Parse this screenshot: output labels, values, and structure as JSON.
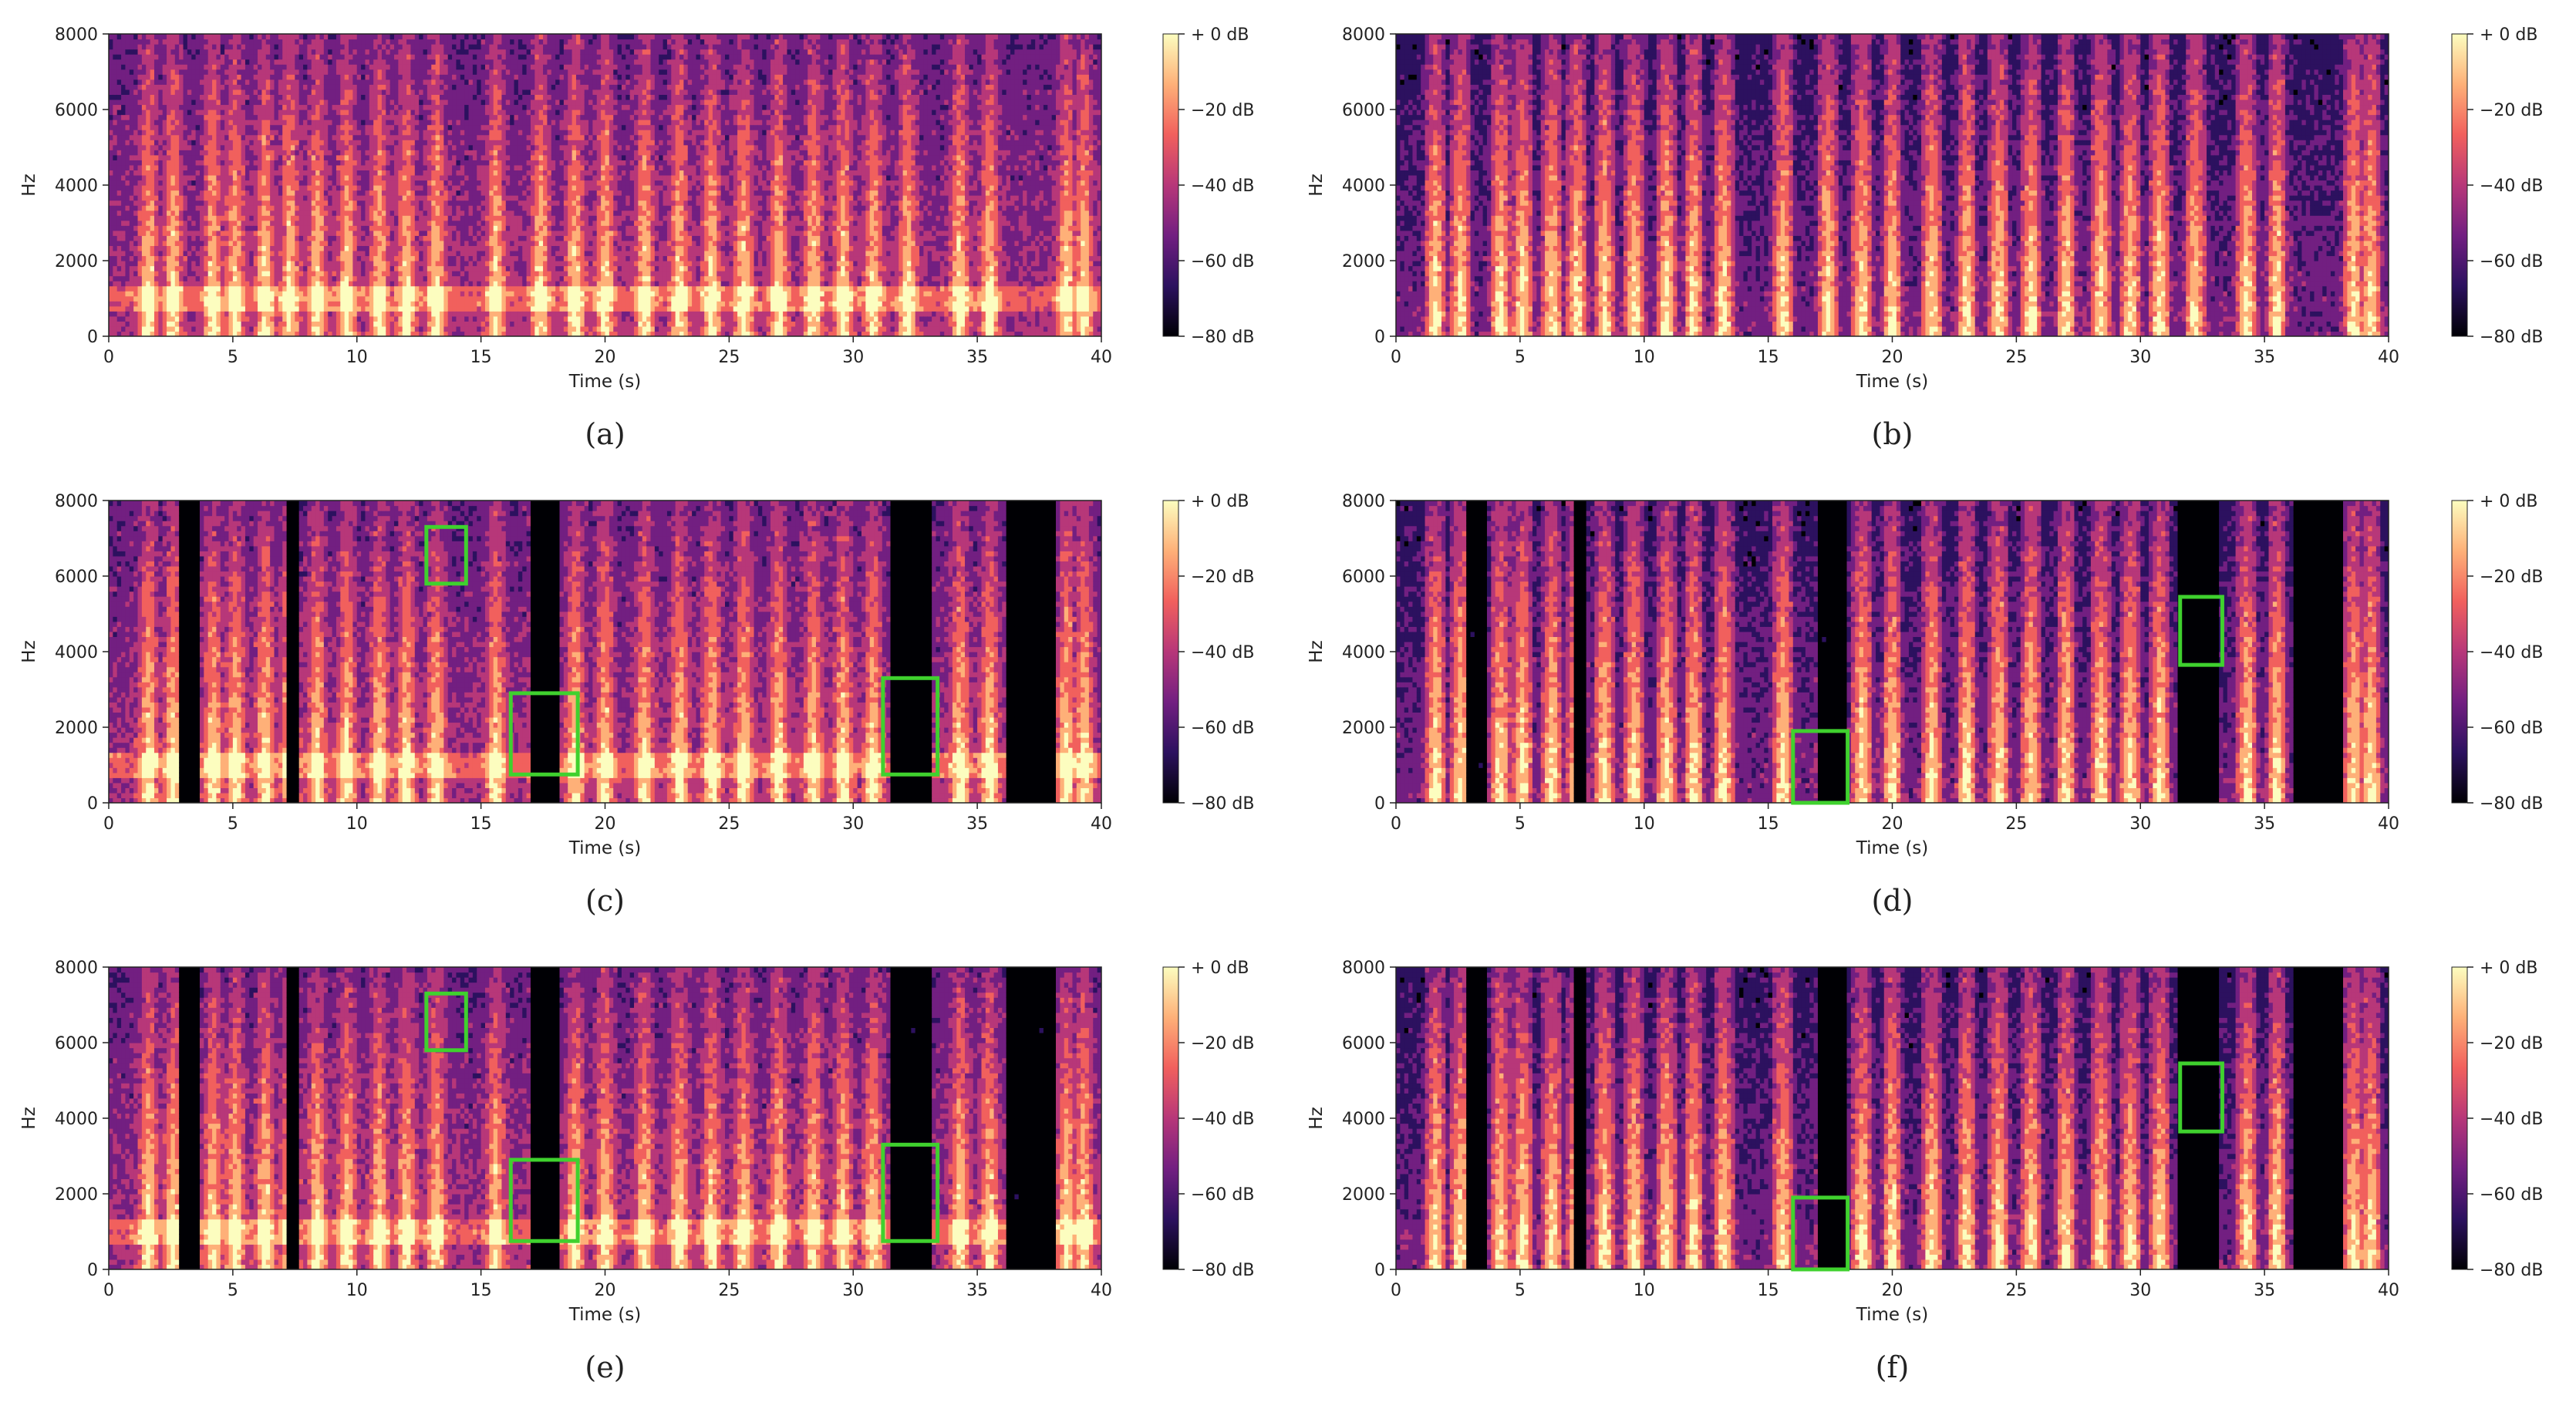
{
  "chart_data": [
    {
      "type": "heatmap",
      "panel_label": "(a)",
      "variant": "noisy",
      "xlabel": "Time (s)",
      "ylabel": "Hz",
      "xlim": [
        0,
        40
      ],
      "ylim": [
        0,
        8000
      ],
      "x_ticks": [
        "0",
        "5",
        "10",
        "15",
        "20",
        "25",
        "30",
        "35",
        "40"
      ],
      "y_ticks": [
        "0",
        "2000",
        "4000",
        "6000",
        "8000"
      ],
      "colorbar": {
        "range_db": [
          -80,
          0
        ],
        "tick_labels": [
          "+ 0 dB",
          "−20 dB",
          "−40 dB",
          "−60 dB",
          "−80 dB"
        ]
      },
      "annotations": []
    },
    {
      "type": "heatmap",
      "panel_label": "(b)",
      "variant": "clean",
      "xlabel": "Time (s)",
      "ylabel": "Hz",
      "xlim": [
        0,
        40
      ],
      "ylim": [
        0,
        8000
      ],
      "x_ticks": [
        "0",
        "5",
        "10",
        "15",
        "20",
        "25",
        "30",
        "35",
        "40"
      ],
      "y_ticks": [
        "0",
        "2000",
        "4000",
        "6000",
        "8000"
      ],
      "colorbar": {
        "range_db": [
          -80,
          0
        ],
        "tick_labels": [
          "+ 0 dB",
          "−20 dB",
          "−40 dB",
          "−60 dB",
          "−80 dB"
        ]
      },
      "annotations": []
    },
    {
      "type": "heatmap",
      "panel_label": "(c)",
      "variant": "enhanced-noisy",
      "xlabel": "Time (s)",
      "ylabel": "Hz",
      "xlim": [
        0,
        40
      ],
      "ylim": [
        0,
        8000
      ],
      "x_ticks": [
        "0",
        "5",
        "10",
        "15",
        "20",
        "25",
        "30",
        "35",
        "40"
      ],
      "y_ticks": [
        "0",
        "2000",
        "4000",
        "6000",
        "8000"
      ],
      "colorbar": {
        "range_db": [
          -80,
          0
        ],
        "tick_labels": [
          "+ 0 dB",
          "−20 dB",
          "−40 dB",
          "−60 dB",
          "−80 dB"
        ]
      },
      "annotations": [
        {
          "t0": 12.8,
          "t1": 14.4,
          "f0": 5800,
          "f1": 7300
        },
        {
          "t0": 16.2,
          "t1": 18.9,
          "f0": 750,
          "f1": 2900
        },
        {
          "t0": 31.2,
          "t1": 33.4,
          "f0": 750,
          "f1": 3300
        }
      ]
    },
    {
      "type": "heatmap",
      "panel_label": "(d)",
      "variant": "enhanced-clean",
      "xlabel": "Time (s)",
      "ylabel": "Hz",
      "xlim": [
        0,
        40
      ],
      "ylim": [
        0,
        8000
      ],
      "x_ticks": [
        "0",
        "5",
        "10",
        "15",
        "20",
        "25",
        "30",
        "35",
        "40"
      ],
      "y_ticks": [
        "0",
        "2000",
        "4000",
        "6000",
        "8000"
      ],
      "colorbar": {
        "range_db": [
          -80,
          0
        ],
        "tick_labels": [
          "+ 0 dB",
          "−20 dB",
          "−40 dB",
          "−60 dB",
          "−80 dB"
        ]
      },
      "annotations": [
        {
          "t0": 16.0,
          "t1": 18.2,
          "f0": 0,
          "f1": 1900
        },
        {
          "t0": 31.6,
          "t1": 33.3,
          "f0": 3650,
          "f1": 5450
        }
      ]
    },
    {
      "type": "heatmap",
      "panel_label": "(e)",
      "variant": "enhanced-noisy",
      "xlabel": "Time (s)",
      "ylabel": "Hz",
      "xlim": [
        0,
        40
      ],
      "ylim": [
        0,
        8000
      ],
      "x_ticks": [
        "0",
        "5",
        "10",
        "15",
        "20",
        "25",
        "30",
        "35",
        "40"
      ],
      "y_ticks": [
        "0",
        "2000",
        "4000",
        "6000",
        "8000"
      ],
      "colorbar": {
        "range_db": [
          -80,
          0
        ],
        "tick_labels": [
          "+ 0 dB",
          "−20 dB",
          "−40 dB",
          "−60 dB",
          "−80 dB"
        ]
      },
      "annotations": [
        {
          "t0": 12.8,
          "t1": 14.4,
          "f0": 5800,
          "f1": 7300
        },
        {
          "t0": 16.2,
          "t1": 18.9,
          "f0": 750,
          "f1": 2900
        },
        {
          "t0": 31.2,
          "t1": 33.4,
          "f0": 750,
          "f1": 3300
        }
      ]
    },
    {
      "type": "heatmap",
      "panel_label": "(f)",
      "variant": "enhanced-clean",
      "xlabel": "Time (s)",
      "ylabel": "Hz",
      "xlim": [
        0,
        40
      ],
      "ylim": [
        0,
        8000
      ],
      "x_ticks": [
        "0",
        "5",
        "10",
        "15",
        "20",
        "25",
        "30",
        "35",
        "40"
      ],
      "y_ticks": [
        "0",
        "2000",
        "4000",
        "6000",
        "8000"
      ],
      "colorbar": {
        "range_db": [
          -80,
          0
        ],
        "tick_labels": [
          "+ 0 dB",
          "−20 dB",
          "−40 dB",
          "−60 dB",
          "−80 dB"
        ]
      },
      "annotations": [
        {
          "t0": 16.0,
          "t1": 18.2,
          "f0": 0,
          "f1": 1900
        },
        {
          "t0": 31.6,
          "t1": 33.3,
          "f0": 3650,
          "f1": 5450
        }
      ]
    }
  ],
  "colors": {
    "annotation_box": "#3fd12e",
    "colormap": [
      "#000004",
      "#2c115f",
      "#721f81",
      "#b73779",
      "#f1605d",
      "#feb078",
      "#fcfdbf"
    ]
  }
}
